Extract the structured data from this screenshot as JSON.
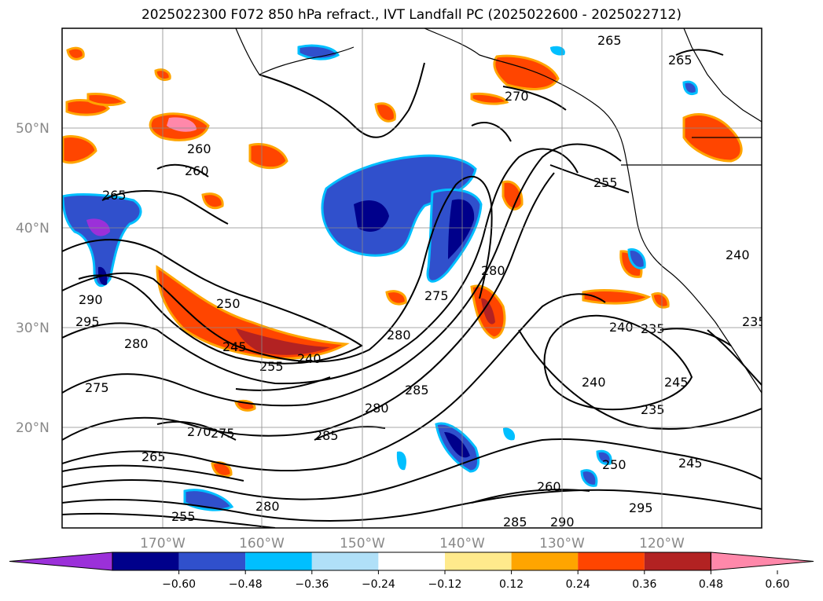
{
  "title": "2025022300 F072 850 hPa refract., IVT Landfall PC (2025022600 - 2025022712)",
  "lat_labels": [
    "50°N",
    "40°N",
    "30°N",
    "20°N"
  ],
  "lon_labels": [
    "170°W",
    "160°W",
    "150°W",
    "140°W",
    "130°W",
    "120°W"
  ],
  "contour_labels": [
    "265",
    "265",
    "270",
    "260",
    "260",
    "265",
    "255",
    "250",
    "245",
    "255",
    "240",
    "280",
    "275",
    "280",
    "285",
    "290",
    "295",
    "280",
    "280",
    "285",
    "275",
    "275",
    "270",
    "265",
    "255",
    "280",
    "285",
    "290",
    "295",
    "260",
    "250",
    "245",
    "235",
    "240",
    "240",
    "235",
    "245",
    "240",
    "235"
  ],
  "colorbar": {
    "colors": [
      "#9b30d9",
      "#00008b",
      "#3050cc",
      "#00bfff",
      "#b0e0f8",
      "#ffffff",
      "#ffea8c",
      "#ffa500",
      "#ff4500",
      "#b22222",
      "#ff88aa"
    ],
    "ticks": [
      "−0.60",
      "−0.48",
      "−0.36",
      "−0.24",
      "−0.12",
      "0.12",
      "0.24",
      "0.36",
      "0.48",
      "0.60"
    ]
  }
}
